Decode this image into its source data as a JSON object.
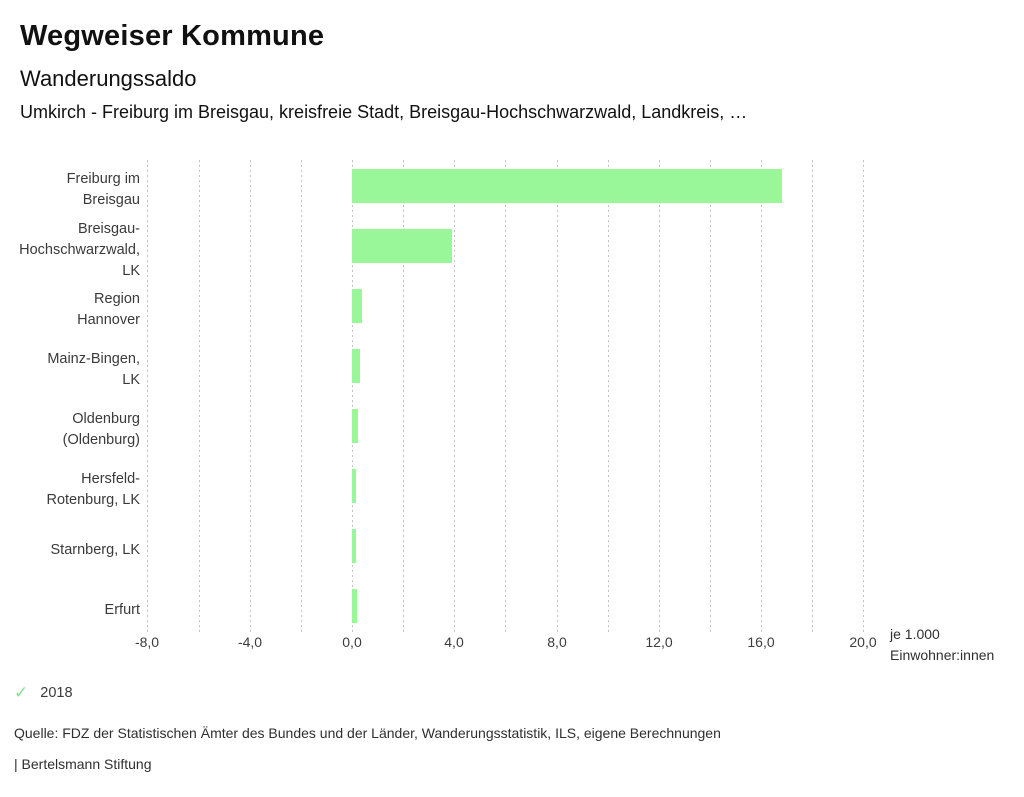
{
  "header": {
    "title": "Wegweiser Kommune",
    "subtitle": "Wanderungssaldo",
    "description": "Umkirch - Freiburg im Breisgau, kreisfreie Stadt, Breisgau-Hochschwarzwald, Landkreis, …"
  },
  "chart_data": {
    "type": "bar",
    "orientation": "horizontal",
    "title": "Wanderungssaldo",
    "categories": [
      "Freiburg im Breisgau",
      "Breisgau-Hochschwarzwald, LK",
      "Region Hannover",
      "Mainz-Bingen, LK",
      "Oldenburg (Oldenburg)",
      "Hersfeld-Rotenburg, LK",
      "Starnberg, LK",
      "Erfurt"
    ],
    "category_lines": [
      [
        "Freiburg im",
        "Breisgau"
      ],
      [
        "Breisgau-",
        "Hochschwarzwald,",
        "LK"
      ],
      [
        "Region",
        "Hannover"
      ],
      [
        "Mainz-Bingen,",
        "LK"
      ],
      [
        "Oldenburg",
        "(Oldenburg)"
      ],
      [
        "Hersfeld-",
        "Rotenburg, LK"
      ],
      [
        "Starnberg, LK"
      ],
      [
        "Erfurt"
      ]
    ],
    "series_name": "2018",
    "values": [
      16.8,
      3.9,
      0.4,
      0.33,
      0.25,
      0.17,
      0.17,
      0.18
    ],
    "xlim": [
      -8,
      20
    ],
    "gridline_step": 2,
    "x_ticks": [
      -8,
      -4,
      0,
      4,
      8,
      12,
      16,
      20
    ],
    "x_tick_labels": [
      "-8,0",
      "-4,0",
      "0,0",
      "4,0",
      "8,0",
      "12,0",
      "16,0",
      "20,0"
    ],
    "grid": true,
    "legend_position": "bottom-left",
    "unit_label_lines": [
      "je 1.000",
      "Einwohner:innen"
    ]
  },
  "legend": {
    "check_icon": "✓"
  },
  "footer": {
    "source": "Quelle: FDZ der Statistischen Ämter des Bundes und der Länder, Wanderungsstatistik, ILS, eigene Berechnungen",
    "attribution": "| Bertelsmann Stiftung"
  },
  "colors": {
    "bar": "#99f699",
    "check": "#8ade8a",
    "grid": "#c3c3c3",
    "text": "#1a1a1a"
  }
}
